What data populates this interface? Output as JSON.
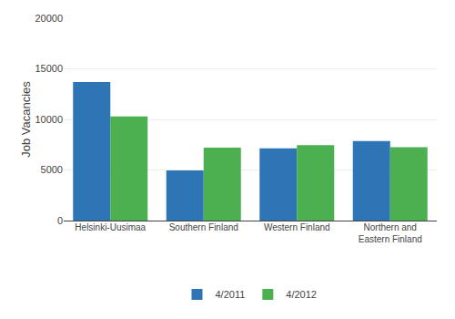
{
  "chart_data": {
    "type": "bar",
    "ylabel": "Job Vacancies",
    "categories": [
      "Helsinki-Uusimaa",
      "Southern Finland",
      "Western Finland",
      "Northern and\nEastern Finland"
    ],
    "series": [
      {
        "name": "4/2011",
        "color": "#2E75B6",
        "values": [
          13700,
          4950,
          7150,
          7850
        ]
      },
      {
        "name": "4/2012",
        "color": "#4CAF50",
        "values": [
          10300,
          7200,
          7450,
          7250
        ]
      }
    ],
    "ylim": [
      0,
      20000
    ],
    "yticks": [
      0,
      5000,
      10000,
      15000,
      20000
    ],
    "grid": true,
    "legend": "bottom"
  }
}
